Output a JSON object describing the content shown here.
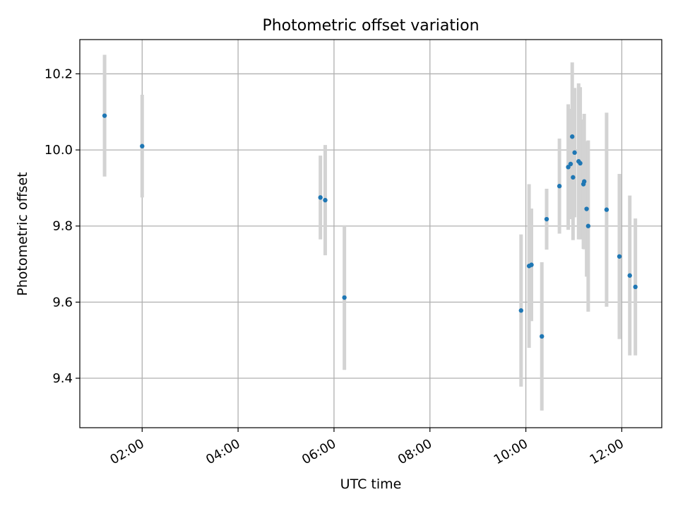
{
  "chart_data": {
    "type": "scatter",
    "title": "Photometric offset variation",
    "xlabel": "UTC time",
    "ylabel": "Photometric offset",
    "x_unit": "hours UTC",
    "xlim": [
      "00:42",
      "12:50"
    ],
    "ylim": [
      9.27,
      10.29
    ],
    "xticks": [
      "02:00",
      "04:00",
      "06:00",
      "08:00",
      "10:00",
      "12:00"
    ],
    "yticks": [
      "9.4",
      "9.6",
      "9.8",
      "10.0",
      "10.2"
    ],
    "grid": true,
    "colors": {
      "point": "#1f77b4",
      "errorbar": "#d3d3d3",
      "grid": "#b0b0b0",
      "axes": "#000000"
    },
    "points": [
      {
        "x": "01:13",
        "y": 10.09,
        "yerr": 0.16
      },
      {
        "x": "02:00",
        "y": 10.01,
        "yerr": 0.135
      },
      {
        "x": "05:43",
        "y": 9.875,
        "yerr": 0.11
      },
      {
        "x": "05:49",
        "y": 9.868,
        "yerr": 0.145
      },
      {
        "x": "06:13",
        "y": 9.612,
        "yerr": 0.19
      },
      {
        "x": "09:54",
        "y": 9.578,
        "yerr": 0.2
      },
      {
        "x": "10:04",
        "y": 9.695,
        "yerr": 0.215
      },
      {
        "x": "10:07",
        "y": 9.698,
        "yerr": 0.148
      },
      {
        "x": "10:20",
        "y": 9.51,
        "yerr": 0.195
      },
      {
        "x": "10:26",
        "y": 9.818,
        "yerr": 0.08
      },
      {
        "x": "10:42",
        "y": 9.905,
        "yerr": 0.125
      },
      {
        "x": "10:53",
        "y": 9.955,
        "yerr": 0.165
      },
      {
        "x": "10:56",
        "y": 9.963,
        "yerr": 0.145
      },
      {
        "x": "10:58",
        "y": 10.035,
        "yerr": 0.195
      },
      {
        "x": "10:59",
        "y": 9.928,
        "yerr": 0.165
      },
      {
        "x": "11:01",
        "y": 9.993,
        "yerr": 0.17
      },
      {
        "x": "11:06",
        "y": 9.97,
        "yerr": 0.205
      },
      {
        "x": "11:08",
        "y": 9.965,
        "yerr": 0.2
      },
      {
        "x": "11:12",
        "y": 9.91,
        "yerr": 0.17
      },
      {
        "x": "11:13",
        "y": 9.917,
        "yerr": 0.178
      },
      {
        "x": "11:16",
        "y": 9.845,
        "yerr": 0.178
      },
      {
        "x": "11:18",
        "y": 9.8,
        "yerr": 0.225
      },
      {
        "x": "11:41",
        "y": 9.843,
        "yerr": 0.255
      },
      {
        "x": "11:57",
        "y": 9.72,
        "yerr": 0.217
      },
      {
        "x": "12:10",
        "y": 9.67,
        "yerr": 0.21
      },
      {
        "x": "12:17",
        "y": 9.64,
        "yerr": 0.18
      }
    ]
  }
}
